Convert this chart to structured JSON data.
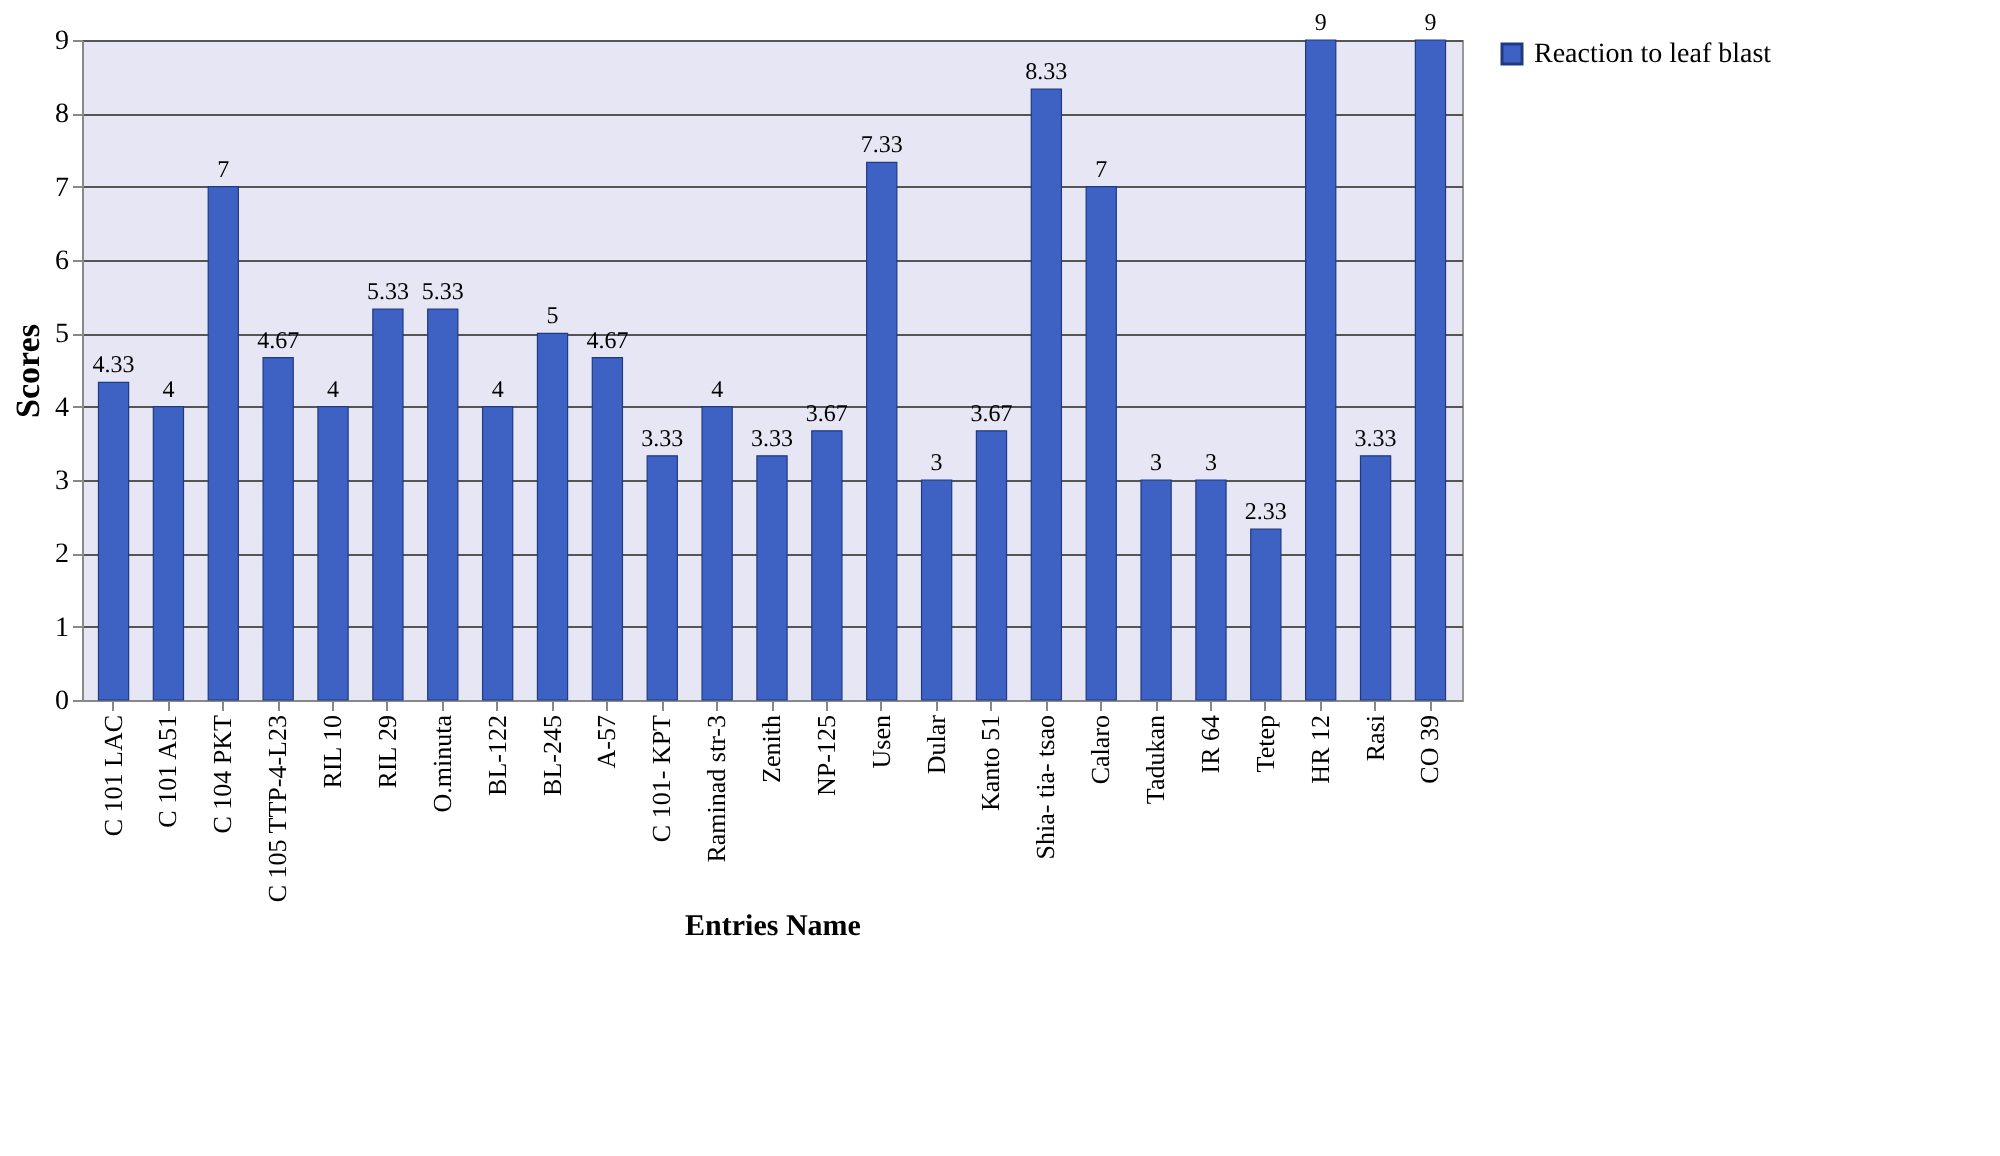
{
  "chart_data": {
    "type": "bar",
    "xlabel": "Entries Name",
    "ylabel": "Scores",
    "categories": [
      "C 101 LAC",
      "C 101 A51",
      "C 104 PKT",
      "C 105 TTP-4-L23",
      "RIL 10",
      "RIL 29",
      "O.minuta",
      "BL-122",
      "BL-245",
      "A-57",
      "C 101- KPT",
      "Raminad str-3",
      "Zenith",
      "NP-125",
      "Usen",
      "Dular",
      "Kanto 51",
      "Shia- tia- tsao",
      "Calaro",
      "Tadukan",
      "IR 64",
      "Tetep",
      "HR 12",
      "Rasi",
      "CO 39"
    ],
    "series": [
      {
        "name": "Reaction to leaf blast",
        "color": "#3d62c4",
        "values": [
          4.33,
          4,
          7,
          4.67,
          4,
          5.33,
          5.33,
          4,
          5,
          4.67,
          3.33,
          4,
          3.33,
          3.67,
          7.33,
          3,
          3.67,
          8.33,
          7,
          3,
          3,
          2.33,
          9,
          3.33,
          9
        ]
      }
    ],
    "ylim": [
      0,
      9
    ],
    "yticks": [
      0,
      1,
      2,
      3,
      4,
      5,
      6,
      7,
      8,
      9
    ],
    "grid": "y",
    "legend": "right",
    "data_labels": true
  }
}
